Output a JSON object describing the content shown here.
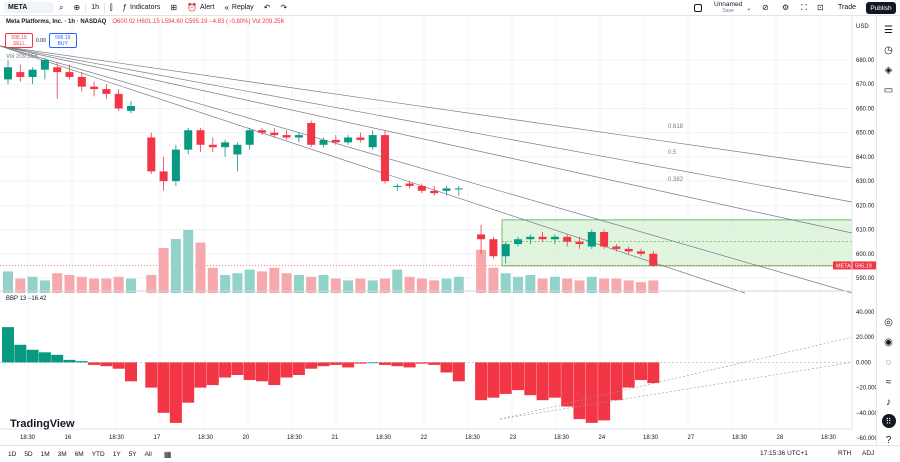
{
  "topbar": {
    "symbol": "META",
    "interval": "1h",
    "indicators_label": "Indicators",
    "alert_label": "Alert",
    "replay_label": "Replay",
    "layout_name": "Unnamed",
    "layout_status": "Save",
    "trade_label": "Trade",
    "publish_label": "Publish"
  },
  "legend": {
    "title": "Meta Platforms, Inc. · 1h · NASDAQ",
    "ohlc": "O600.02 H601.15 L594.60 C595.19 −4.83 (−0.80%) Vol 209.25K",
    "sell_price": "595.19",
    "sell_label": "SELL",
    "spread": "0.00",
    "buy_price": "595.19",
    "buy_label": "BUY",
    "volume": "Vol 209.25K",
    "indicator": "BBP 13  −16.42"
  },
  "price_axis": {
    "currency": "USD",
    "ticks": [
      "680.00",
      "670.00",
      "660.00",
      "650.00",
      "640.00",
      "630.00",
      "620.00",
      "610.00",
      "600.00",
      "590.00"
    ],
    "last_tag_symbol": "META",
    "last_tag_price": "595.19"
  },
  "indicator_axis": {
    "ticks": [
      "40.000",
      "20.000",
      "0.000",
      "−20.000",
      "−40.000",
      "−60.000"
    ]
  },
  "fib_labels": [
    "0.618",
    "0.5",
    "0.382"
  ],
  "time_axis": [
    "18:30",
    "16",
    "18:30",
    "17",
    "18:30",
    "20",
    "18:30",
    "21",
    "18:30",
    "22",
    "18:30",
    "23",
    "18:30",
    "24",
    "18:30",
    "27",
    "18:30",
    "28",
    "18:30"
  ],
  "watermark": "TradingView",
  "bottombar": {
    "ranges": [
      "1D",
      "5D",
      "1M",
      "3M",
      "6M",
      "YTD",
      "1Y",
      "5Y",
      "All"
    ],
    "clock": "17:15:36 UTC+1",
    "session": "RTH",
    "adj": "ADJ"
  },
  "colors": {
    "up": "#089981",
    "down": "#f23645",
    "vol_up": "#92d3c9",
    "vol_down": "#f7a8ac",
    "zone": "#d4f0d0"
  },
  "icons": [
    "search-icon",
    "plus-icon",
    "indicators-icon",
    "alert-icon",
    "replay-icon",
    "undo-icon",
    "redo-icon",
    "settings-icon",
    "fullscreen-icon",
    "camera-icon",
    "watchlist-icon",
    "clock-icon",
    "layers-icon",
    "chat-icon",
    "target-icon",
    "bell-icon",
    "apps-icon",
    "help-icon"
  ],
  "chart_data": {
    "type": "candlestick",
    "candles": [
      {
        "o": 672,
        "h": 680,
        "l": 670,
        "c": 677
      },
      {
        "o": 675,
        "h": 678,
        "l": 671,
        "c": 673
      },
      {
        "o": 673,
        "h": 677,
        "l": 670,
        "c": 676
      },
      {
        "o": 676,
        "h": 681,
        "l": 672,
        "c": 680
      },
      {
        "o": 677,
        "h": 679,
        "l": 664,
        "c": 675
      },
      {
        "o": 675,
        "h": 678,
        "l": 672,
        "c": 673
      },
      {
        "o": 673,
        "h": 675,
        "l": 667,
        "c": 669
      },
      {
        "o": 669,
        "h": 671,
        "l": 665,
        "c": 668
      },
      {
        "o": 668,
        "h": 670,
        "l": 664,
        "c": 666
      },
      {
        "o": 666,
        "h": 668,
        "l": 659,
        "c": 660
      },
      {
        "o": 659,
        "h": 663,
        "l": 658,
        "c": 661
      },
      {
        "o": 648,
        "h": 650,
        "l": 633,
        "c": 634
      },
      {
        "o": 634,
        "h": 640,
        "l": 626,
        "c": 630
      },
      {
        "o": 630,
        "h": 645,
        "l": 628,
        "c": 643
      },
      {
        "o": 643,
        "h": 652,
        "l": 641,
        "c": 651
      },
      {
        "o": 651,
        "h": 652,
        "l": 642,
        "c": 645
      },
      {
        "o": 645,
        "h": 648,
        "l": 642,
        "c": 644
      },
      {
        "o": 644,
        "h": 647,
        "l": 640,
        "c": 646
      },
      {
        "o": 641,
        "h": 646,
        "l": 634,
        "c": 645
      },
      {
        "o": 645,
        "h": 652,
        "l": 643,
        "c": 651
      },
      {
        "o": 651,
        "h": 652,
        "l": 649,
        "c": 650
      },
      {
        "o": 650,
        "h": 652,
        "l": 648,
        "c": 649
      },
      {
        "o": 649,
        "h": 651,
        "l": 647,
        "c": 648
      },
      {
        "o": 648,
        "h": 650,
        "l": 646,
        "c": 649
      },
      {
        "o": 654,
        "h": 655,
        "l": 644,
        "c": 645
      },
      {
        "o": 645,
        "h": 648,
        "l": 644,
        "c": 647
      },
      {
        "o": 647,
        "h": 649,
        "l": 645,
        "c": 646
      },
      {
        "o": 646,
        "h": 649,
        "l": 645,
        "c": 648
      },
      {
        "o": 648,
        "h": 650,
        "l": 646,
        "c": 647
      },
      {
        "o": 644,
        "h": 651,
        "l": 643,
        "c": 649
      },
      {
        "o": 649,
        "h": 651,
        "l": 629,
        "c": 630
      },
      {
        "o": 628,
        "h": 629,
        "l": 626,
        "c": 628
      },
      {
        "o": 629,
        "h": 630,
        "l": 627,
        "c": 628
      },
      {
        "o": 628,
        "h": 629,
        "l": 625,
        "c": 626
      },
      {
        "o": 626,
        "h": 628,
        "l": 624,
        "c": 625
      },
      {
        "o": 626,
        "h": 628,
        "l": 624,
        "c": 627
      },
      {
        "o": 627,
        "h": 628,
        "l": 624,
        "c": 627
      },
      {
        "o": 608,
        "h": 612,
        "l": 600,
        "c": 606
      },
      {
        "o": 606,
        "h": 607,
        "l": 598,
        "c": 599
      },
      {
        "o": 599,
        "h": 605,
        "l": 596,
        "c": 604
      },
      {
        "o": 604,
        "h": 607,
        "l": 603,
        "c": 606
      },
      {
        "o": 606,
        "h": 608,
        "l": 604,
        "c": 607
      },
      {
        "o": 607,
        "h": 609,
        "l": 605,
        "c": 606
      },
      {
        "o": 606,
        "h": 608,
        "l": 604,
        "c": 607
      },
      {
        "o": 607,
        "h": 608,
        "l": 603,
        "c": 605
      },
      {
        "o": 605,
        "h": 607,
        "l": 602,
        "c": 604
      },
      {
        "o": 603,
        "h": 610,
        "l": 602,
        "c": 609
      },
      {
        "o": 609,
        "h": 610,
        "l": 602,
        "c": 603
      },
      {
        "o": 603,
        "h": 604,
        "l": 601,
        "c": 602
      },
      {
        "o": 602,
        "h": 603,
        "l": 600,
        "c": 601
      },
      {
        "o": 601,
        "h": 602,
        "l": 599,
        "c": 600
      },
      {
        "o": 600.02,
        "h": 601.15,
        "l": 594.6,
        "c": 595.19
      }
    ],
    "volume": [
      12,
      8,
      9,
      7,
      11,
      10,
      9,
      8,
      8,
      9,
      8,
      10,
      25,
      30,
      35,
      28,
      14,
      10,
      11,
      13,
      12,
      14,
      11,
      10,
      9,
      10,
      8,
      7,
      8,
      7,
      8,
      13,
      9,
      8,
      7,
      8,
      9,
      24,
      14,
      11,
      9,
      10,
      8,
      9,
      8,
      7,
      9,
      8,
      8,
      7,
      6,
      7
    ],
    "bbp": [
      28,
      14,
      10,
      8,
      6,
      2,
      1,
      -2,
      -3,
      -5,
      -15,
      -20,
      -40,
      -48,
      -32,
      -20,
      -18,
      -12,
      -10,
      -14,
      -15,
      -18,
      -12,
      -10,
      -5,
      -3,
      -2,
      -4,
      -1,
      0,
      -2,
      -3,
      -4,
      -1,
      -2,
      -8,
      -15,
      -30,
      -28,
      -25,
      -22,
      -26,
      -30,
      -28,
      -35,
      -45,
      -48,
      -46,
      -30,
      -20,
      -14,
      -16.42
    ],
    "price_range": [
      590,
      680
    ],
    "bbp_range": [
      -60,
      40
    ],
    "zone": {
      "top": 614,
      "bottom": 595
    },
    "last_price": 595.19
  }
}
